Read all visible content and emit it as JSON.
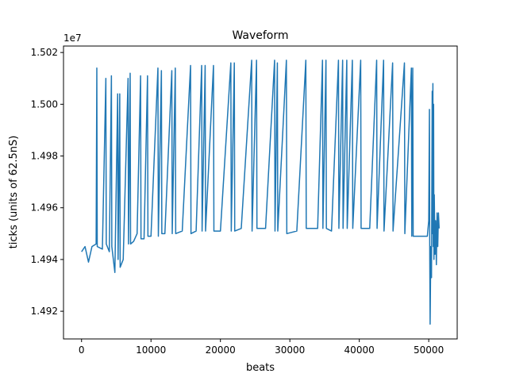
{
  "chart_data": {
    "type": "line",
    "title": "Waveform",
    "xlabel": "beats",
    "ylabel": "ticks (units of 62.5nS)",
    "y_offset_label": "1e7",
    "xlim": [
      -2600,
      54100
    ],
    "ylim": [
      1.49093,
      1.50225
    ],
    "xticks": [
      0,
      10000,
      20000,
      30000,
      40000,
      50000
    ],
    "yticks": [
      1.492,
      1.494,
      1.496,
      1.498,
      {
        "value": 1.5,
        "label": "1.500"
      },
      1.502
    ],
    "series": [
      {
        "name": "waveform",
        "color": "#1f77b4",
        "x": [
          0,
          500,
          1000,
          1500,
          2100,
          2200,
          2260,
          3000,
          3500,
          3560,
          4000,
          4300,
          4360,
          4800,
          5200,
          5260,
          5500,
          5560,
          6000,
          6700,
          6760,
          7000,
          7060,
          7500,
          8000,
          8500,
          8560,
          9000,
          9500,
          9560,
          10000,
          11000,
          11060,
          11500,
          11560,
          12000,
          13000,
          13060,
          13500,
          13560,
          14500,
          15700,
          15760,
          16500,
          17300,
          17360,
          17800,
          17860,
          19000,
          19060,
          20000,
          21500,
          21560,
          22000,
          22060,
          23000,
          24500,
          24560,
          25200,
          25260,
          26500,
          27800,
          27860,
          28200,
          28260,
          29500,
          29560,
          31000,
          32300,
          32360,
          34000,
          34700,
          34760,
          35200,
          35260,
          36000,
          37000,
          37060,
          37600,
          37660,
          38200,
          38260,
          39000,
          39060,
          40200,
          40260,
          41500,
          42500,
          42560,
          43500,
          43560,
          44800,
          44860,
          46500,
          46560,
          47500,
          47560,
          47700,
          47760,
          49000,
          49800,
          50000,
          50100,
          50150,
          50200,
          50300,
          50400,
          50500,
          50550,
          50600,
          50650,
          50700,
          50750,
          50800,
          50900,
          51000,
          51100,
          51200,
          51300,
          51400,
          51500
        ],
        "values": [
          1.4943,
          1.4945,
          1.4939,
          1.4945,
          1.4946,
          1.5014,
          1.4945,
          1.4944,
          1.501,
          1.4946,
          1.4943,
          1.5011,
          1.4945,
          1.4935,
          1.5004,
          1.494,
          1.5004,
          1.4937,
          1.494,
          1.501,
          1.4946,
          1.5012,
          1.4946,
          1.4947,
          1.495,
          1.5011,
          1.4948,
          1.4948,
          1.5011,
          1.4949,
          1.4949,
          1.5014,
          1.4949,
          1.5013,
          1.495,
          1.495,
          1.5013,
          1.495,
          1.5014,
          1.495,
          1.4951,
          1.5015,
          1.495,
          1.4951,
          1.5015,
          1.4951,
          1.5015,
          1.4951,
          1.5015,
          1.4951,
          1.4951,
          1.5016,
          1.4951,
          1.5016,
          1.4951,
          1.4952,
          1.5017,
          1.4951,
          1.5017,
          1.4952,
          1.4952,
          1.5017,
          1.4951,
          1.5016,
          1.4951,
          1.5017,
          1.495,
          1.4951,
          1.5017,
          1.4952,
          1.4952,
          1.5017,
          1.4952,
          1.5017,
          1.4952,
          1.4951,
          1.5017,
          1.4952,
          1.5017,
          1.4952,
          1.5017,
          1.4952,
          1.5017,
          1.4952,
          1.5017,
          1.4952,
          1.4952,
          1.5017,
          1.4952,
          1.5017,
          1.4951,
          1.5016,
          1.4951,
          1.5016,
          1.495,
          1.5014,
          1.4949,
          1.5014,
          1.4949,
          1.4949,
          1.4949,
          1.4955,
          1.4998,
          1.494,
          1.4915,
          1.4945,
          1.4933,
          1.5005,
          1.495,
          1.5008,
          1.4945,
          1.5,
          1.494,
          1.4965,
          1.4942,
          1.4955,
          1.4938,
          1.4958,
          1.4945,
          1.4958,
          1.4952
        ]
      }
    ]
  }
}
